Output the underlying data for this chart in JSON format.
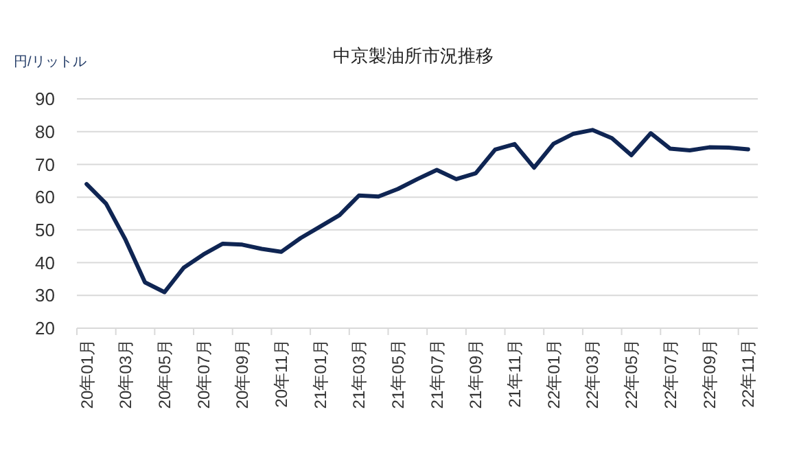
{
  "chart_data": {
    "type": "line",
    "title": "中京製油所市況推移",
    "ylabel": "円/リットル",
    "categories": [
      "20年01月",
      null,
      "20年03月",
      null,
      "20年05月",
      null,
      "20年07月",
      null,
      "20年09月",
      null,
      "20年11月",
      null,
      "21年01月",
      null,
      "21年03月",
      null,
      "21年05月",
      null,
      "21年07月",
      null,
      "21年09月",
      null,
      "21年11月",
      null,
      "22年01月",
      null,
      "22年03月",
      null,
      "22年05月",
      null,
      "22年07月",
      null,
      "22年09月",
      null,
      "22年11月"
    ],
    "series": [
      {
        "color": "#0f2553",
        "values": [
          64,
          58,
          47,
          34,
          31,
          38.5,
          42.5,
          45.8,
          45.5,
          44.2,
          43.3,
          47.5,
          51,
          54.5,
          60.5,
          60.2,
          62.5,
          65.5,
          68.3,
          65.5,
          67.3,
          74.5,
          76.2,
          69,
          76.3,
          79.3,
          80.5,
          78,
          72.8,
          79.5,
          74.8,
          74.3,
          75.2,
          75.1,
          74.6
        ]
      }
    ],
    "ylim": [
      20,
      90
    ],
    "yticks": [
      20,
      30,
      40,
      50,
      60,
      70,
      80,
      90
    ],
    "grid": "y",
    "marker": "none",
    "line_style": "solid"
  }
}
